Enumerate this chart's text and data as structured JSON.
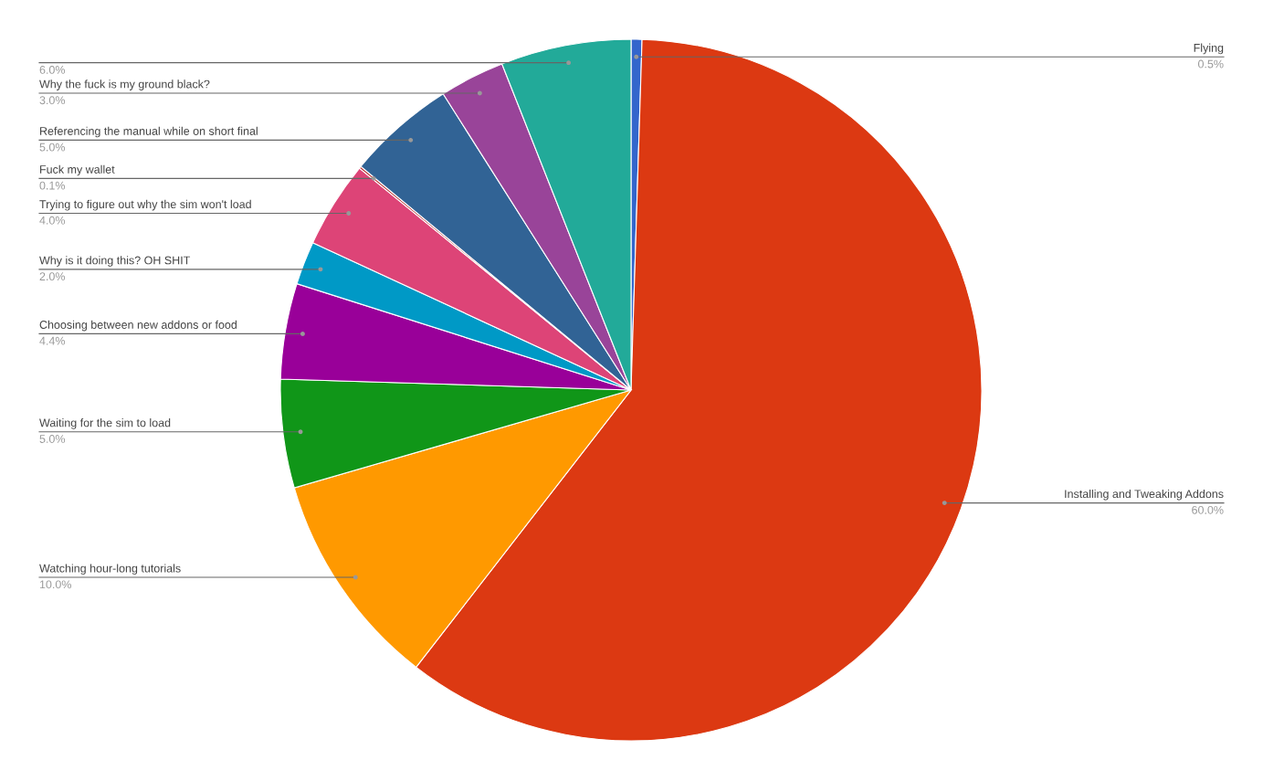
{
  "chart_data": {
    "type": "pie",
    "categories": [
      "Flying",
      "Installing and Tweaking Addons",
      "Watching hour-long tutorials",
      "Waiting for the sim to load",
      "Choosing between new addons or food",
      "Why is it doing this? OH SHIT",
      "Trying to figure out why the sim won't load",
      "Fuck my wallet",
      "Referencing the manual while on short final",
      "Why the fuck is my ground black?",
      null
    ],
    "values": [
      0.5,
      60,
      10,
      5,
      4.4,
      2,
      4,
      0.1,
      5,
      3,
      6
    ],
    "value_labels": [
      "0.5%",
      "60.0%",
      "10.0%",
      "5.0%",
      "4.4%",
      "2.0%",
      "4.0%",
      "0.1%",
      "5.0%",
      "3.0%",
      "6.0%"
    ],
    "colors": [
      "#3366cc",
      "#dc3912",
      "#ff9900",
      "#109618",
      "#990099",
      "#0099c6",
      "#dd4477",
      "#b82e2e",
      "#316395",
      "#994499",
      "#22aa99"
    ],
    "legend": false
  }
}
